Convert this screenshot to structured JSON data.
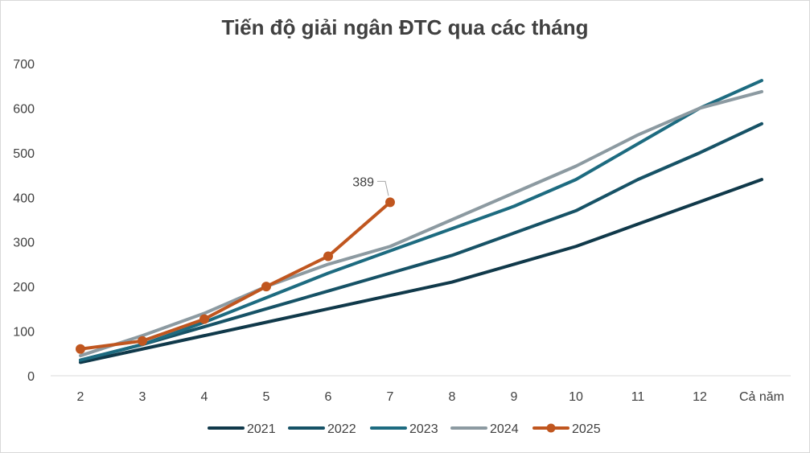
{
  "chart_data": {
    "type": "line",
    "title": "Tiến độ giải ngân ĐTC qua các tháng",
    "categories": [
      "2",
      "3",
      "4",
      "5",
      "6",
      "7",
      "8",
      "9",
      "10",
      "11",
      "12",
      "Cả năm"
    ],
    "ylim": [
      0,
      700
    ],
    "yticks": [
      0,
      100,
      200,
      300,
      400,
      500,
      600,
      700
    ],
    "grid": false,
    "legend": "bottom",
    "series": [
      {
        "name": "2021",
        "color": "#10394a",
        "values": [
          30,
          60,
          90,
          120,
          150,
          180,
          210,
          250,
          290,
          340,
          390,
          440
        ],
        "markers": false
      },
      {
        "name": "2022",
        "color": "#165266",
        "values": [
          35,
          70,
          110,
          150,
          190,
          230,
          270,
          320,
          370,
          440,
          500,
          565
        ],
        "markers": false
      },
      {
        "name": "2023",
        "color": "#1d6b80",
        "values": [
          35,
          70,
          120,
          175,
          230,
          280,
          330,
          380,
          440,
          520,
          600,
          662
        ],
        "markers": false
      },
      {
        "name": "2024",
        "color": "#8c9aa1",
        "values": [
          45,
          90,
          140,
          200,
          250,
          290,
          350,
          410,
          470,
          540,
          600,
          637
        ],
        "markers": false
      },
      {
        "name": "2025",
        "color": "#c0561f",
        "values": [
          60,
          78,
          127,
          200,
          268,
          389,
          null,
          null,
          null,
          null,
          null,
          null
        ],
        "markers": true
      }
    ],
    "annotations": [
      {
        "label": "389",
        "series": "2025",
        "category": "7",
        "value": 389
      }
    ]
  }
}
